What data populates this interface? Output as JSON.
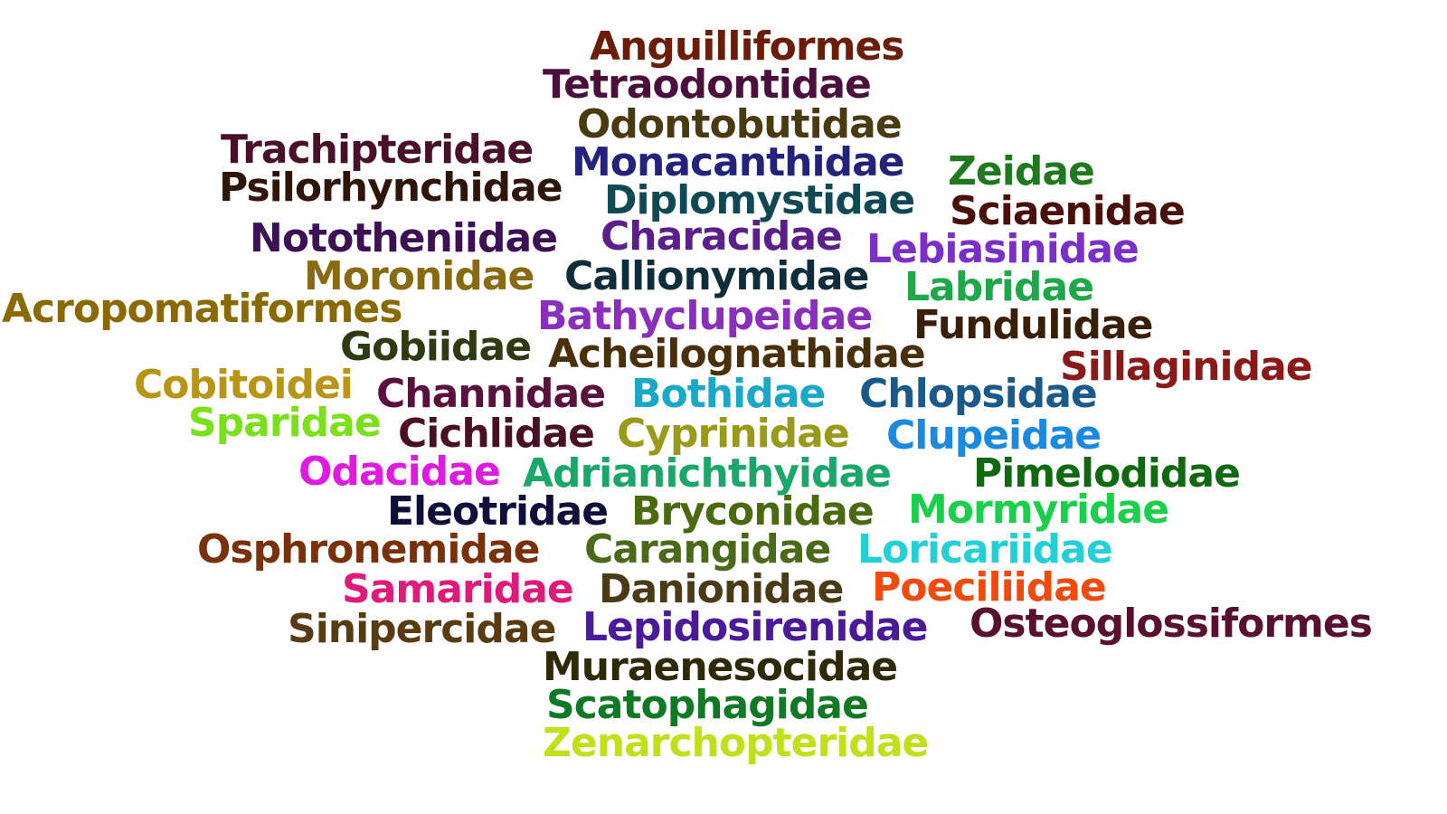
{
  "words": [
    {
      "text": "Anguilliformes",
      "color": "#6b1d08"
    },
    {
      "text": "Tetraodontidae",
      "color": "#4a0f3c"
    },
    {
      "text": "Odontobutidae",
      "color": "#4a3a10"
    },
    {
      "text": "Trachipteridae",
      "color": "#4a0f2a"
    },
    {
      "text": "Monacanthidae",
      "color": "#23237e"
    },
    {
      "text": "Zeidae",
      "color": "#1f7a1f"
    },
    {
      "text": "Psilorhynchidae",
      "color": "#2e1508"
    },
    {
      "text": "Diplomystidae",
      "color": "#0f4a54"
    },
    {
      "text": "Sciaenidae",
      "color": "#4a0f08"
    },
    {
      "text": "Nototheniidae",
      "color": "#3d0f54"
    },
    {
      "text": "Characidae",
      "color": "#5a1f8a"
    },
    {
      "text": "Lebiasinidae",
      "color": "#7b2fc9"
    },
    {
      "text": "Moronidae",
      "color": "#8a6a10"
    },
    {
      "text": "Callionymidae",
      "color": "#0f2e3c"
    },
    {
      "text": "Labridae",
      "color": "#1fa84a"
    },
    {
      "text": "Acropomatiformes",
      "color": "#8a6a00"
    },
    {
      "text": "Bathyclupeidae",
      "color": "#8a2fbd"
    },
    {
      "text": "Fundulidae",
      "color": "#3a1f08"
    },
    {
      "text": "Gobiidae",
      "color": "#2e3a10"
    },
    {
      "text": "Acheilognathidae",
      "color": "#4a3008"
    },
    {
      "text": "Sillaginidae",
      "color": "#8a1a1a"
    },
    {
      "text": "Cobitoidei",
      "color": "#b89515"
    },
    {
      "text": "Channidae",
      "color": "#5a0f3c"
    },
    {
      "text": "Bothidae",
      "color": "#1aa8c8"
    },
    {
      "text": "Chlopsidae",
      "color": "#1a5a8a"
    },
    {
      "text": "Sparidae",
      "color": "#7ae01a"
    },
    {
      "text": "Cichlidae",
      "color": "#4a0f23"
    },
    {
      "text": "Cyprinidae",
      "color": "#9a9a1a"
    },
    {
      "text": "Clupeidae",
      "color": "#1a8ae0"
    },
    {
      "text": "Odacidae",
      "color": "#e01ae0"
    },
    {
      "text": "Adrianichthyidae",
      "color": "#1aa86a"
    },
    {
      "text": "Pimelodidae",
      "color": "#0f6a0f"
    },
    {
      "text": "Eleotridae",
      "color": "#0f0f3c"
    },
    {
      "text": "Bryconidae",
      "color": "#4a6a0f"
    },
    {
      "text": "Mormyridae",
      "color": "#1ad04a"
    },
    {
      "text": "Osphronemidae",
      "color": "#7a3008"
    },
    {
      "text": "Carangidae",
      "color": "#4a6a1a"
    },
    {
      "text": "Loricariidae",
      "color": "#23d0d8"
    },
    {
      "text": "Samaridae",
      "color": "#e01a7a"
    },
    {
      "text": "Danionidae",
      "color": "#4a3a15"
    },
    {
      "text": "Poeciliidae",
      "color": "#f04a0f"
    },
    {
      "text": "Sinipercidae",
      "color": "#5a3a10"
    },
    {
      "text": "Lepidosirenidae",
      "color": "#4a1a9a"
    },
    {
      "text": "Osteoglossiformes",
      "color": "#5a0f30"
    },
    {
      "text": "Muraenesocidae",
      "color": "#2e2a08"
    },
    {
      "text": "Scatophagidae",
      "color": "#0f7a23"
    },
    {
      "text": "Zenarchopteridae",
      "color": "#c0e01a"
    }
  ]
}
